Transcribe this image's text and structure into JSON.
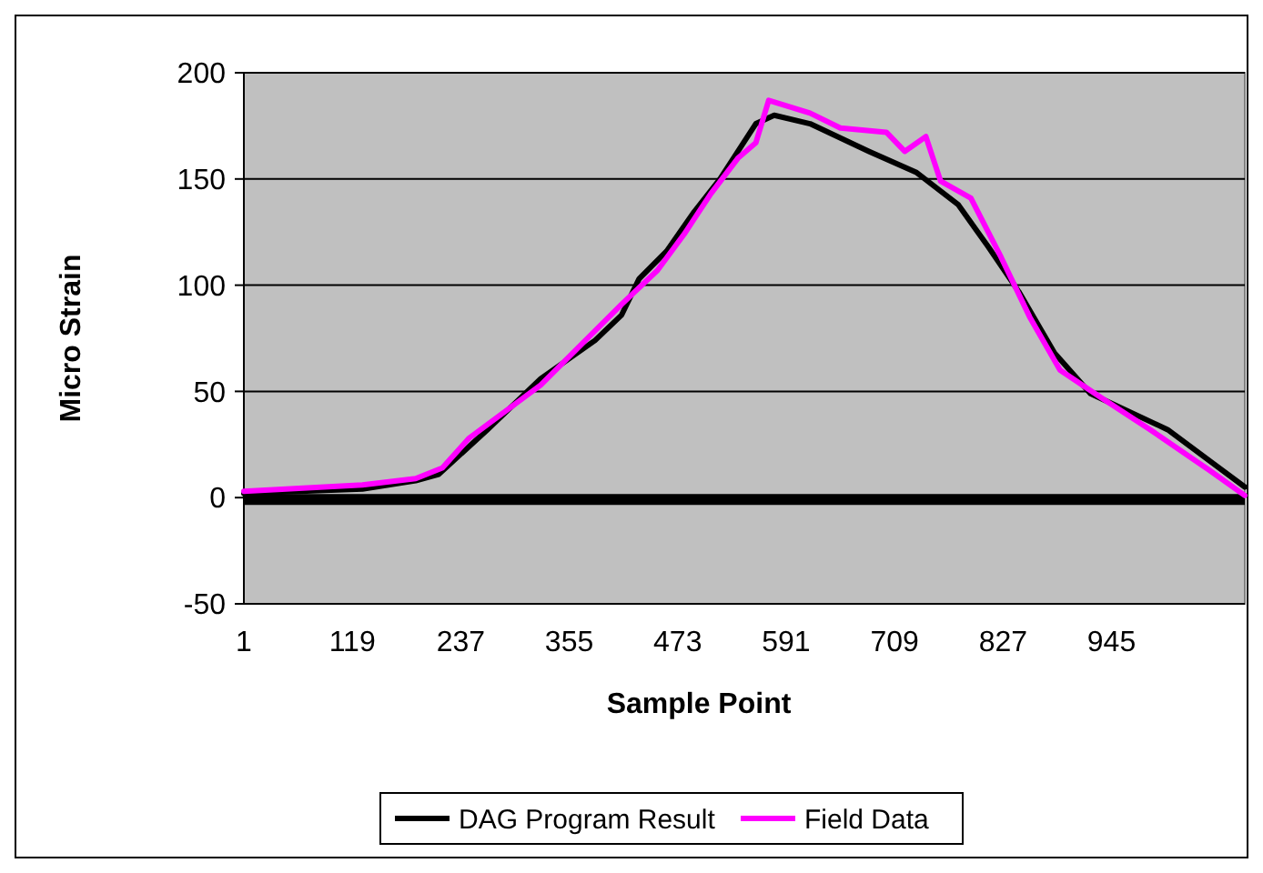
{
  "chart_data": {
    "type": "line",
    "xlabel": "Sample Point",
    "ylabel": "Micro Strain",
    "xlim": [
      1,
      1090
    ],
    "xticks": [
      1,
      119,
      237,
      355,
      473,
      591,
      709,
      827,
      945
    ],
    "ylim": [
      -50,
      200
    ],
    "yticks": [
      -50,
      0,
      50,
      100,
      150,
      200
    ],
    "grid": "y",
    "legend": "bottom",
    "line_style": "solid",
    "marker": "none",
    "series": [
      {
        "name": "DAG Program Result",
        "color": "#000000",
        "x": [
          1,
          130,
          188,
          213,
          266,
          324,
          383,
          412,
          431,
          461,
          490,
          519,
          558,
          578,
          617,
          681,
          733,
          778,
          811,
          844,
          883,
          922,
          1006,
          1090
        ],
        "values": [
          2,
          4,
          8,
          11,
          32,
          56,
          74,
          86,
          103,
          116,
          134,
          150,
          176,
          180,
          176,
          163,
          153,
          138,
          118,
          97,
          68,
          49,
          32,
          5
        ]
      },
      {
        "name": "Field Data",
        "color": "#ff00ff",
        "x": [
          1,
          130,
          188,
          217,
          246,
          324,
          412,
          451,
          480,
          509,
          539,
          558,
          572,
          617,
          650,
          700,
          720,
          743,
          759,
          792,
          825,
          856,
          889,
          934,
          987,
          1051,
          1090
        ],
        "values": [
          3,
          6,
          9,
          14,
          28,
          53,
          91,
          107,
          124,
          143,
          160,
          167,
          187,
          181,
          174,
          172,
          163,
          170,
          149,
          141,
          113,
          85,
          60,
          47,
          32,
          13,
          1
        ]
      }
    ]
  }
}
